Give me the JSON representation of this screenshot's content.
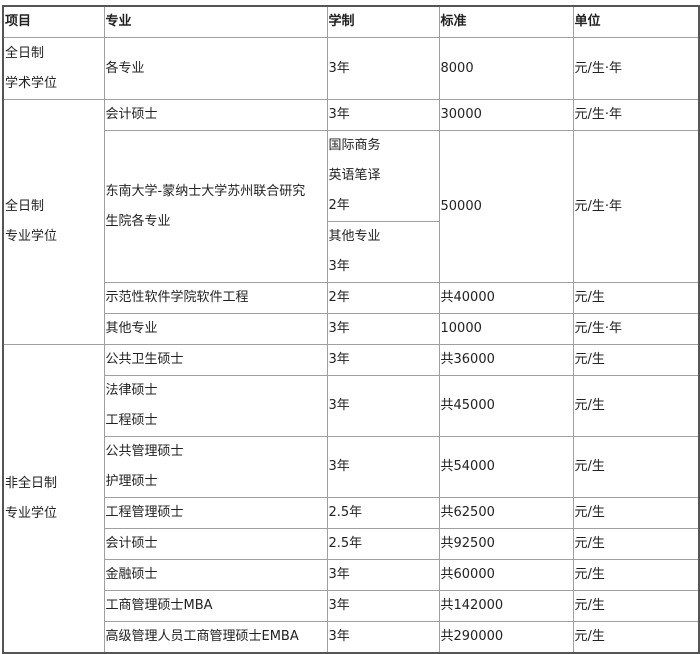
{
  "headers": [
    "项目",
    "专业",
    "学制",
    "标准",
    "单位"
  ],
  "groups": {
    "g1": [
      "全日制",
      "学术学位"
    ],
    "g2": [
      "全日制",
      "专业学位"
    ],
    "g3": [
      "非全日制",
      "专业学位"
    ]
  },
  "rows": {
    "r1": {
      "major": "各专业",
      "years": "3年",
      "fee": "8000",
      "unit": "元/生·年"
    },
    "r2": {
      "major": "会计硕士",
      "years": "3年",
      "fee": "30000",
      "unit": "元/生·年"
    },
    "r3": {
      "major": [
        "东南大学-蒙纳士大学苏州联合研究",
        "生院各专业"
      ],
      "years_a": [
        "国际商务",
        "英语笔译",
        "2年"
      ],
      "years_b": [
        "其他专业",
        "3年"
      ],
      "fee": "50000",
      "unit": "元/生·年"
    },
    "r4": {
      "major": "示范性软件学院软件工程",
      "years": "2年",
      "fee": "共40000",
      "unit": "元/生"
    },
    "r5": {
      "major": "其他专业",
      "years": "3年",
      "fee": "10000",
      "unit": "元/生·年"
    },
    "r6": {
      "major": "公共卫生硕士",
      "years": "3年",
      "fee": "共36000",
      "unit": "元/生"
    },
    "r7": {
      "major": [
        "法律硕士",
        "工程硕士"
      ],
      "years": "3年",
      "fee": "共45000",
      "unit": "元/生"
    },
    "r8": {
      "major": [
        "公共管理硕士",
        "护理硕士"
      ],
      "years": "3年",
      "fee": "共54000",
      "unit": "元/生"
    },
    "r9": {
      "major": "工程管理硕士",
      "years": "2.5年",
      "fee": "共62500",
      "unit": "元/生"
    },
    "r10": {
      "major": "会计硕士",
      "years": "2.5年",
      "fee": "共92500",
      "unit": "元/生"
    },
    "r11": {
      "major": "金融硕士",
      "years": "3年",
      "fee": "共60000",
      "unit": "元/生"
    },
    "r12": {
      "major": "工商管理硕士MBA",
      "years": "3年",
      "fee": "共142000",
      "unit": "元/生"
    },
    "r13": {
      "major": "高级管理人员工商管理硕士EMBA",
      "years": "3年",
      "fee": "共290000",
      "unit": "元/生"
    }
  }
}
